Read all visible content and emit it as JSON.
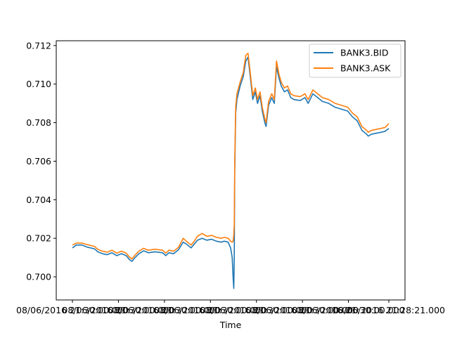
{
  "chart_data": {
    "type": "line",
    "title": "",
    "xlabel": "Time",
    "ylabel": "",
    "ylim": [
      0.6988,
      0.71225
    ],
    "grid": false,
    "legend": "top-right",
    "colors": {
      "bid": "#1f77b4",
      "ask": "#ff7f0e"
    },
    "x_ticks": [
      {
        "label": "08/06/2016 21:30:00.000",
        "pos": 0.0
      },
      {
        "label": "08/06/2016 21:30:00.000",
        "pos": 0.1454
      },
      {
        "label": "08/06/2016 21:30:00.000",
        "pos": 0.2908
      },
      {
        "label": "08/06/2016 21:30:00.000",
        "pos": 0.4362
      },
      {
        "label": "08/06/2016 21:30:00.000",
        "pos": 0.5816
      },
      {
        "label": "08/06/2016 21:30:00.000",
        "pos": 0.727
      },
      {
        "label": "08/06/2016 21:30:00.000",
        "pos": 0.8724
      },
      {
        "label": "08/06/2016 21:28:21.000",
        "pos": 1.0
      }
    ],
    "y_ticks": [
      0.7,
      0.702,
      0.704,
      0.706,
      0.708,
      0.71,
      0.712
    ],
    "y_tick_labels": [
      "0.700",
      "0.702",
      "0.704",
      "0.706",
      "0.708",
      "0.710",
      "0.712"
    ],
    "x_range": [
      0.0,
      1.0
    ],
    "series": [
      {
        "name": "BANK3.BID",
        "points": [
          [
            0.0,
            0.7015
          ],
          [
            0.012,
            0.70165
          ],
          [
            0.03,
            0.70165
          ],
          [
            0.045,
            0.70155
          ],
          [
            0.07,
            0.70145
          ],
          [
            0.08,
            0.7013
          ],
          [
            0.095,
            0.7012
          ],
          [
            0.11,
            0.70115
          ],
          [
            0.125,
            0.70125
          ],
          [
            0.14,
            0.7011
          ],
          [
            0.155,
            0.7012
          ],
          [
            0.17,
            0.7011
          ],
          [
            0.18,
            0.7009
          ],
          [
            0.188,
            0.7008
          ],
          [
            0.198,
            0.701
          ],
          [
            0.21,
            0.7012
          ],
          [
            0.225,
            0.70135
          ],
          [
            0.24,
            0.70125
          ],
          [
            0.26,
            0.7013
          ],
          [
            0.285,
            0.70125
          ],
          [
            0.295,
            0.7011
          ],
          [
            0.305,
            0.70125
          ],
          [
            0.32,
            0.7012
          ],
          [
            0.335,
            0.7014
          ],
          [
            0.35,
            0.7018
          ],
          [
            0.36,
            0.7017
          ],
          [
            0.375,
            0.7015
          ],
          [
            0.385,
            0.7017
          ],
          [
            0.395,
            0.7019
          ],
          [
            0.41,
            0.702
          ],
          [
            0.425,
            0.7019
          ],
          [
            0.44,
            0.70195
          ],
          [
            0.455,
            0.70185
          ],
          [
            0.47,
            0.7018
          ],
          [
            0.48,
            0.70185
          ],
          [
            0.492,
            0.7018
          ],
          [
            0.5,
            0.7015
          ],
          [
            0.505,
            0.701
          ],
          [
            0.508,
            0.6999
          ],
          [
            0.51,
            0.6994
          ],
          [
            0.5115,
            0.701
          ],
          [
            0.513,
            0.7055
          ],
          [
            0.516,
            0.7085
          ],
          [
            0.52,
            0.7092
          ],
          [
            0.53,
            0.7099
          ],
          [
            0.54,
            0.7104
          ],
          [
            0.548,
            0.7112
          ],
          [
            0.555,
            0.7114
          ],
          [
            0.562,
            0.7104
          ],
          [
            0.57,
            0.7092
          ],
          [
            0.578,
            0.7096
          ],
          [
            0.585,
            0.709
          ],
          [
            0.593,
            0.7094
          ],
          [
            0.6,
            0.7086
          ],
          [
            0.608,
            0.708
          ],
          [
            0.612,
            0.7078
          ],
          [
            0.62,
            0.7089
          ],
          [
            0.63,
            0.7093
          ],
          [
            0.638,
            0.709
          ],
          [
            0.645,
            0.7109
          ],
          [
            0.653,
            0.7103
          ],
          [
            0.66,
            0.7099
          ],
          [
            0.67,
            0.7096
          ],
          [
            0.68,
            0.7097
          ],
          [
            0.69,
            0.7093
          ],
          [
            0.7,
            0.7092
          ],
          [
            0.72,
            0.70915
          ],
          [
            0.735,
            0.7093
          ],
          [
            0.745,
            0.709
          ],
          [
            0.76,
            0.7095
          ],
          [
            0.775,
            0.7093
          ],
          [
            0.79,
            0.7091
          ],
          [
            0.81,
            0.709
          ],
          [
            0.83,
            0.7088
          ],
          [
            0.85,
            0.7087
          ],
          [
            0.87,
            0.7086
          ],
          [
            0.885,
            0.7083
          ],
          [
            0.9,
            0.7081
          ],
          [
            0.915,
            0.7076
          ],
          [
            0.93,
            0.7074
          ],
          [
            0.935,
            0.7073
          ],
          [
            0.945,
            0.7074
          ],
          [
            0.96,
            0.70745
          ],
          [
            0.975,
            0.7075
          ],
          [
            0.988,
            0.70755
          ],
          [
            1.0,
            0.7077
          ]
        ]
      },
      {
        "name": "BANK3.ASK",
        "points": [
          [
            0.0,
            0.70165
          ],
          [
            0.012,
            0.70175
          ],
          [
            0.03,
            0.70175
          ],
          [
            0.045,
            0.70168
          ],
          [
            0.07,
            0.70158
          ],
          [
            0.08,
            0.70143
          ],
          [
            0.095,
            0.70133
          ],
          [
            0.11,
            0.70128
          ],
          [
            0.125,
            0.70138
          ],
          [
            0.14,
            0.70123
          ],
          [
            0.155,
            0.70133
          ],
          [
            0.17,
            0.70123
          ],
          [
            0.18,
            0.70103
          ],
          [
            0.188,
            0.70093
          ],
          [
            0.198,
            0.70113
          ],
          [
            0.21,
            0.70133
          ],
          [
            0.225,
            0.70148
          ],
          [
            0.24,
            0.70138
          ],
          [
            0.26,
            0.70143
          ],
          [
            0.285,
            0.70138
          ],
          [
            0.295,
            0.70123
          ],
          [
            0.305,
            0.70138
          ],
          [
            0.32,
            0.70133
          ],
          [
            0.335,
            0.70153
          ],
          [
            0.35,
            0.702
          ],
          [
            0.36,
            0.70185
          ],
          [
            0.375,
            0.70165
          ],
          [
            0.385,
            0.70185
          ],
          [
            0.395,
            0.7021
          ],
          [
            0.41,
            0.70225
          ],
          [
            0.425,
            0.7021
          ],
          [
            0.44,
            0.70215
          ],
          [
            0.455,
            0.70205
          ],
          [
            0.47,
            0.702
          ],
          [
            0.48,
            0.70205
          ],
          [
            0.492,
            0.702
          ],
          [
            0.5,
            0.70185
          ],
          [
            0.505,
            0.7018
          ],
          [
            0.508,
            0.70185
          ],
          [
            0.51,
            0.7022
          ],
          [
            0.5115,
            0.7027
          ],
          [
            0.513,
            0.706
          ],
          [
            0.516,
            0.7088
          ],
          [
            0.52,
            0.7095
          ],
          [
            0.53,
            0.7101
          ],
          [
            0.54,
            0.7106
          ],
          [
            0.548,
            0.7115
          ],
          [
            0.555,
            0.7116
          ],
          [
            0.562,
            0.7106
          ],
          [
            0.57,
            0.7094
          ],
          [
            0.578,
            0.7098
          ],
          [
            0.585,
            0.7092
          ],
          [
            0.593,
            0.7096
          ],
          [
            0.6,
            0.7088
          ],
          [
            0.608,
            0.7082
          ],
          [
            0.612,
            0.708
          ],
          [
            0.62,
            0.7091
          ],
          [
            0.63,
            0.7095
          ],
          [
            0.638,
            0.7092
          ],
          [
            0.645,
            0.7112
          ],
          [
            0.653,
            0.7105
          ],
          [
            0.66,
            0.7101
          ],
          [
            0.67,
            0.7098
          ],
          [
            0.68,
            0.7099
          ],
          [
            0.69,
            0.7095
          ],
          [
            0.7,
            0.7094
          ],
          [
            0.72,
            0.70935
          ],
          [
            0.735,
            0.7095
          ],
          [
            0.745,
            0.7092
          ],
          [
            0.76,
            0.7097
          ],
          [
            0.775,
            0.7095
          ],
          [
            0.79,
            0.7093
          ],
          [
            0.81,
            0.7092
          ],
          [
            0.83,
            0.709
          ],
          [
            0.85,
            0.7089
          ],
          [
            0.87,
            0.7088
          ],
          [
            0.885,
            0.7085
          ],
          [
            0.9,
            0.7083
          ],
          [
            0.915,
            0.7078
          ],
          [
            0.93,
            0.7076
          ],
          [
            0.935,
            0.7075
          ],
          [
            0.945,
            0.7076
          ],
          [
            0.96,
            0.70765
          ],
          [
            0.975,
            0.7077
          ],
          [
            0.988,
            0.70775
          ],
          [
            1.0,
            0.70795
          ]
        ]
      }
    ]
  }
}
